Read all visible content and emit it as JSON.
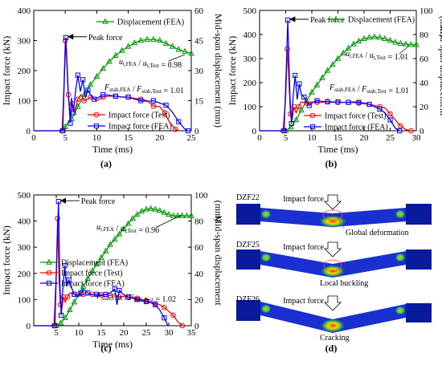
{
  "figure": {
    "panel_labels": [
      "(a)",
      "(b)",
      "(c)",
      "(d)"
    ]
  },
  "chart_data": [
    {
      "type": "line",
      "panel": "(a)",
      "xlabel": "Time (ms)",
      "ylabel": "Impact force (kN)",
      "y2label": "Mid-span displacement  (mm)",
      "xlim": [
        0,
        25
      ],
      "xticks": [
        0,
        5,
        10,
        15,
        20,
        25
      ],
      "ylim": [
        0,
        400
      ],
      "yticks": [
        0,
        100,
        200,
        300,
        400
      ],
      "y2lim": [
        0,
        60
      ],
      "y2ticks": [
        0,
        15,
        30,
        45,
        60
      ],
      "colors": {
        "test": "#ff0000",
        "fea": "#0000ff",
        "disp": "#009900"
      },
      "annotations": {
        "peak": "Peak force",
        "ratio_u": "u_t,FEA / u_t,Test = 0.98",
        "ratio_f": "F_stab,FEA / F_stab,Test = 1.01"
      },
      "legend": {
        "disp": "Displacement (FEA)",
        "test": "Impact force (Test)",
        "fea": "Impact force (FEA)"
      },
      "series": [
        {
          "name": "Displacement (FEA)",
          "axis": "y2",
          "color": "#009900",
          "marker": "triangle",
          "x": [
            4.5,
            5,
            6,
            7,
            8,
            9,
            10,
            11,
            12,
            13,
            14,
            15,
            16,
            17,
            18,
            19,
            20,
            21,
            22,
            23,
            24,
            25
          ],
          "y": [
            0,
            2,
            6,
            12,
            18,
            23,
            27,
            31,
            34.5,
            37.5,
            40,
            42,
            43.8,
            45,
            45.5,
            45.5,
            45,
            43.5,
            42,
            40.5,
            39.5,
            38.5
          ]
        },
        {
          "name": "Impact force (Test)",
          "axis": "y",
          "color": "#ff0000",
          "marker": "circle",
          "x": [
            0,
            4.5,
            4.8,
            5.0,
            5.2,
            5.5,
            5.8,
            6.1,
            6.5,
            7,
            7.5,
            8,
            8.5,
            9,
            10,
            11,
            12,
            13,
            14,
            15,
            16,
            17,
            18,
            19,
            20,
            20.8,
            21.5,
            22.5,
            23
          ],
          "y": [
            0,
            0,
            150,
            300,
            265,
            120,
            55,
            90,
            65,
            105,
            120,
            100,
            105,
            112,
            100,
            112,
            115,
            115,
            112,
            112,
            108,
            105,
            100,
            82,
            80,
            60,
            30,
            5,
            0
          ]
        },
        {
          "name": "Impact force (FEA)",
          "axis": "y",
          "color": "#0000ff",
          "marker": "square",
          "x": [
            0,
            4.6,
            4.9,
            5.1,
            5.4,
            5.8,
            6.0,
            6.3,
            6.6,
            7,
            7.4,
            7.8,
            8.2,
            8.6,
            9,
            9.6,
            10.2,
            11,
            12,
            13,
            14,
            15,
            16,
            17,
            18,
            19,
            20,
            21,
            22,
            23,
            24,
            24.5
          ],
          "y": [
            0,
            0,
            200,
            310,
            150,
            25,
            110,
            60,
            125,
            185,
            130,
            170,
            110,
            135,
            120,
            105,
            110,
            120,
            118,
            115,
            112,
            112,
            105,
            100,
            98,
            100,
            92,
            85,
            62,
            30,
            5,
            0
          ]
        }
      ]
    },
    {
      "type": "line",
      "panel": "(b)",
      "xlabel": "Time (ms)",
      "ylabel": "Impact force (kN)",
      "y2label": "Mid-span displacement",
      "y2unit": "(mm)",
      "xlim": [
        0,
        30
      ],
      "xticks": [
        0,
        5,
        10,
        15,
        20,
        25,
        30
      ],
      "ylim": [
        0,
        500
      ],
      "yticks": [
        0,
        100,
        200,
        300,
        400,
        500
      ],
      "y2lim": [
        0,
        100
      ],
      "y2ticks": [
        0,
        20,
        40,
        60,
        80,
        100
      ],
      "colors": {
        "test": "#ff0000",
        "fea": "#0000ff",
        "disp": "#009900"
      },
      "annotations": {
        "peak": "Peak force",
        "ratio_u": "u_t,FEA / u_t,Test = 1.01",
        "ratio_f": "F_stab,FEA / F_stab,Test = 1.01"
      },
      "legend": {
        "disp": "Displacement (FEA)",
        "test": "Impact force (Test)",
        "fea": "Impact force (FEA)"
      },
      "series": [
        {
          "name": "Displacement (FEA)",
          "axis": "y2",
          "color": "#009900",
          "marker": "triangle",
          "x": [
            5,
            6,
            7,
            8,
            9,
            10,
            11,
            12,
            13,
            14,
            15,
            16,
            17,
            18,
            19,
            20,
            21,
            22,
            23,
            24,
            25,
            26,
            27,
            28,
            29,
            30
          ],
          "y": [
            0,
            3,
            9,
            17,
            25,
            32,
            38,
            44,
            50,
            55,
            60,
            64.5,
            68.5,
            72,
            74.5,
            76.5,
            77.5,
            78,
            77.5,
            76.5,
            75,
            73.5,
            72.5,
            72,
            71.5,
            71.5
          ]
        },
        {
          "name": "Impact force (Test)",
          "axis": "y",
          "color": "#ff0000",
          "marker": "circle",
          "x": [
            0,
            4.5,
            5.0,
            5.3,
            5.6,
            5.9,
            6.2,
            6.6,
            7,
            7.5,
            8,
            9,
            10,
            11,
            12,
            13,
            14,
            15,
            16,
            17,
            18,
            19,
            20,
            21,
            22,
            23,
            24,
            25,
            26,
            27,
            28,
            29
          ],
          "y": [
            0,
            0,
            140,
            340,
            220,
            70,
            40,
            100,
            75,
            100,
            120,
            115,
            120,
            118,
            118,
            122,
            120,
            118,
            118,
            118,
            117,
            115,
            112,
            110,
            105,
            100,
            95,
            70,
            45,
            20,
            5,
            0
          ]
        },
        {
          "name": "Impact force (FEA)",
          "axis": "y",
          "color": "#0000ff",
          "marker": "square",
          "x": [
            0,
            4.7,
            5.1,
            5.4,
            5.8,
            6.1,
            6.4,
            6.8,
            7.2,
            7.6,
            8,
            8.5,
            9,
            9.5,
            10,
            11,
            12,
            13,
            14,
            15,
            16,
            17,
            18,
            19,
            20,
            21,
            22,
            23,
            24,
            25,
            26,
            26.8
          ],
          "y": [
            0,
            0,
            250,
            460,
            150,
            30,
            135,
            230,
            130,
            195,
            150,
            140,
            120,
            105,
            115,
            125,
            122,
            120,
            118,
            120,
            118,
            118,
            120,
            118,
            115,
            110,
            100,
            90,
            75,
            45,
            10,
            0
          ]
        }
      ]
    },
    {
      "type": "line",
      "panel": "(c)",
      "xlabel": "Time (ms)",
      "ylabel": "Impact force (kN)",
      "y2label": "Mid-span displacement",
      "y2unit": "(mm)",
      "xlim": [
        0,
        35
      ],
      "xticks": [
        5,
        10,
        15,
        20,
        25,
        30,
        35
      ],
      "ylim": [
        0,
        500
      ],
      "yticks": [
        0,
        100,
        200,
        300,
        400,
        500
      ],
      "y2lim": [
        0,
        100
      ],
      "y2ticks": [
        0,
        20,
        40,
        60,
        80,
        100
      ],
      "colors": {
        "test": "#ff0000",
        "fea": "#0000ff",
        "disp": "#009900"
      },
      "annotations": {
        "peak": "Peak force",
        "ratio_u": "u_t,FEA / u_t,Test = 0.96",
        "ratio_f": "F_stab,FEA / F_stab,Test = 1.02"
      },
      "legend": {
        "disp": "Displacement (FEA)",
        "test": "Impact force (Test)",
        "fea": "Impact force (FEA)"
      },
      "series": [
        {
          "name": "Displacement (FEA)",
          "axis": "y2",
          "color": "#009900",
          "marker": "triangle",
          "x": [
            5,
            6,
            7,
            8,
            9,
            10,
            11,
            12,
            13,
            14,
            15,
            16,
            17,
            18,
            19,
            20,
            21,
            22,
            23,
            24,
            25,
            26,
            27,
            28,
            29,
            30,
            31,
            32,
            33,
            34,
            35
          ],
          "y": [
            0,
            2,
            6,
            12,
            18,
            24,
            30,
            36,
            42,
            47,
            52,
            57,
            62,
            66,
            70,
            74,
            78,
            82,
            85,
            87.5,
            89,
            89.5,
            89,
            88,
            86.5,
            85,
            84,
            84,
            84,
            84,
            84
          ]
        },
        {
          "name": "Impact force (Test)",
          "axis": "y",
          "color": "#ff0000",
          "marker": "circle",
          "x": [
            0,
            4.5,
            5.0,
            5.3,
            5.6,
            5.9,
            6.2,
            6.6,
            7,
            7.5,
            8,
            9,
            10,
            11,
            12,
            13,
            14,
            15,
            16,
            17,
            18,
            19,
            20,
            21,
            22,
            23,
            24,
            25,
            26,
            27,
            28,
            29,
            30,
            31,
            32,
            33
          ],
          "y": [
            0,
            0,
            200,
            410,
            190,
            80,
            60,
            110,
            90,
            110,
            125,
            120,
            118,
            120,
            118,
            120,
            115,
            118,
            118,
            115,
            120,
            110,
            112,
            108,
            110,
            105,
            100,
            95,
            90,
            85,
            80,
            70,
            55,
            40,
            15,
            0
          ]
        },
        {
          "name": "Impact force (FEA)",
          "axis": "y",
          "color": "#0000ff",
          "marker": "square",
          "x": [
            0,
            4.7,
            5.1,
            5.5,
            5.8,
            6.1,
            6.5,
            6.9,
            7.3,
            7.8,
            8.3,
            9,
            9.8,
            10.5,
            11,
            12,
            13,
            14,
            15,
            16,
            17,
            18,
            18.5,
            19,
            20,
            21,
            22,
            23,
            24,
            25,
            26,
            27,
            28,
            29,
            29.8
          ],
          "y": [
            0,
            0,
            250,
            475,
            160,
            40,
            150,
            230,
            150,
            175,
            150,
            120,
            110,
            125,
            140,
            125,
            118,
            120,
            115,
            120,
            125,
            140,
            80,
            135,
            118,
            110,
            105,
            100,
            95,
            92,
            88,
            80,
            60,
            30,
            0
          ]
        }
      ]
    }
  ],
  "panel_d": {
    "labels": {
      "impact": "Impact force",
      "dzf22": "DZF22",
      "dzf25": "DZF25",
      "dzf26": "DZF26",
      "global": "Global deformation",
      "local": "Local buckling",
      "cracking": "Cracking"
    },
    "colors": {
      "beam": "#1a2fd0",
      "plate": "#0a1a9c",
      "hot": "#ff2a00",
      "warm": "#ffd400",
      "mild": "#3fbf3f"
    }
  }
}
